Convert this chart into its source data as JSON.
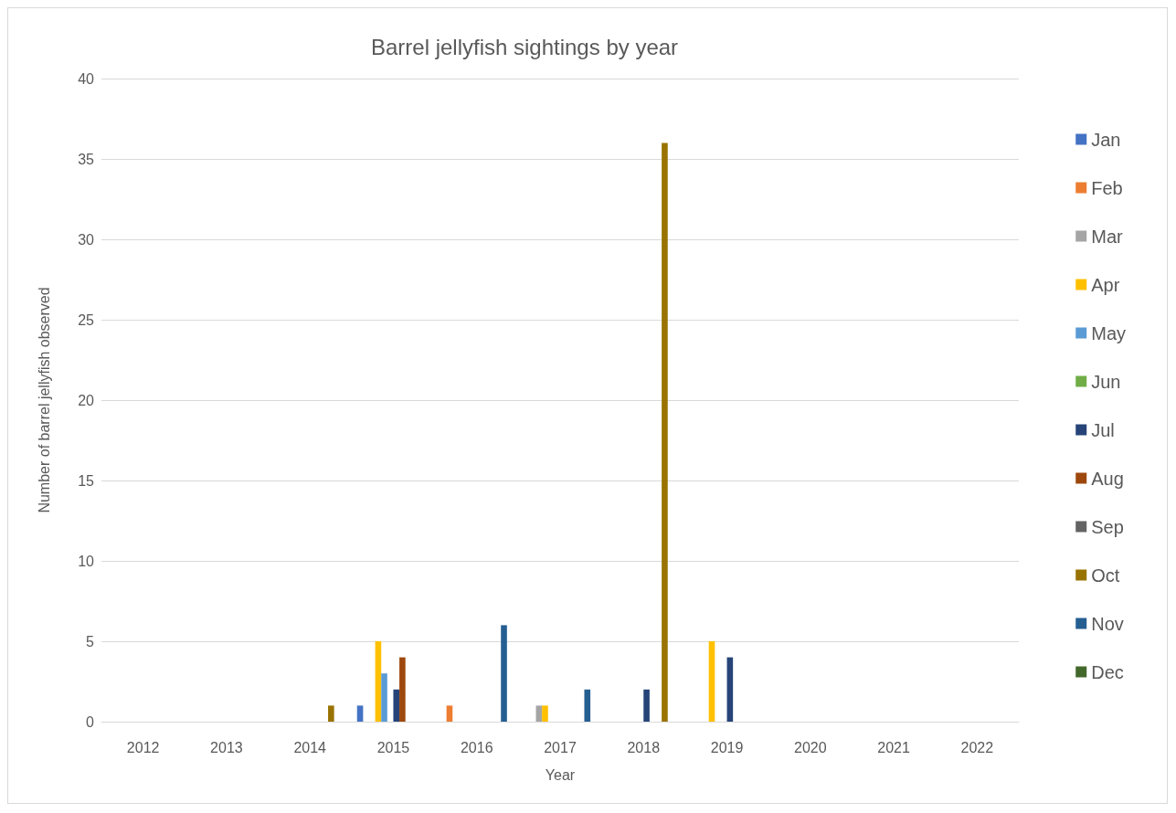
{
  "chart_data": {
    "type": "bar",
    "title": "Barrel jellyfish sightings by year",
    "xlabel": "Year",
    "ylabel": "Number of barrel jellyfish observed",
    "categories": [
      "2012",
      "2013",
      "2014",
      "2015",
      "2016",
      "2017",
      "2018",
      "2019",
      "2020",
      "2021",
      "2022"
    ],
    "series": [
      {
        "name": "Jan",
        "color": "#4472c4",
        "values": [
          null,
          null,
          null,
          1,
          null,
          null,
          null,
          null,
          null,
          null,
          null
        ]
      },
      {
        "name": "Feb",
        "color": "#ed7d31",
        "values": [
          null,
          null,
          null,
          null,
          1,
          null,
          null,
          null,
          null,
          null,
          null
        ]
      },
      {
        "name": "Mar",
        "color": "#a5a5a5",
        "values": [
          null,
          null,
          null,
          null,
          null,
          1,
          null,
          null,
          null,
          null,
          null
        ]
      },
      {
        "name": "Apr",
        "color": "#ffc000",
        "values": [
          null,
          null,
          null,
          5,
          null,
          1,
          null,
          5,
          null,
          null,
          null
        ]
      },
      {
        "name": "May",
        "color": "#5b9bd5",
        "values": [
          null,
          null,
          null,
          3,
          null,
          null,
          null,
          null,
          null,
          null,
          null
        ]
      },
      {
        "name": "Jun",
        "color": "#70ad47",
        "values": [
          null,
          null,
          null,
          null,
          null,
          null,
          null,
          null,
          null,
          null,
          null
        ]
      },
      {
        "name": "Jul",
        "color": "#264478",
        "values": [
          null,
          null,
          null,
          2,
          null,
          null,
          2,
          4,
          null,
          null,
          null
        ]
      },
      {
        "name": "Aug",
        "color": "#9e480e",
        "values": [
          null,
          null,
          null,
          4,
          null,
          null,
          null,
          null,
          null,
          null,
          null
        ]
      },
      {
        "name": "Sep",
        "color": "#636363",
        "values": [
          null,
          null,
          null,
          null,
          null,
          null,
          null,
          null,
          null,
          null,
          null
        ]
      },
      {
        "name": "Oct",
        "color": "#997300",
        "values": [
          null,
          null,
          1,
          null,
          null,
          null,
          36,
          null,
          null,
          null,
          null
        ]
      },
      {
        "name": "Nov",
        "color": "#255e91",
        "values": [
          null,
          null,
          null,
          null,
          6,
          2,
          null,
          null,
          null,
          null,
          null
        ]
      },
      {
        "name": "Dec",
        "color": "#43682b",
        "values": [
          null,
          null,
          null,
          null,
          null,
          null,
          null,
          null,
          null,
          null,
          null
        ]
      }
    ],
    "ylim": [
      0,
      40
    ],
    "yticks": [
      0,
      5,
      10,
      15,
      20,
      25,
      30,
      35,
      40
    ],
    "grid": "y",
    "legend": "right"
  }
}
